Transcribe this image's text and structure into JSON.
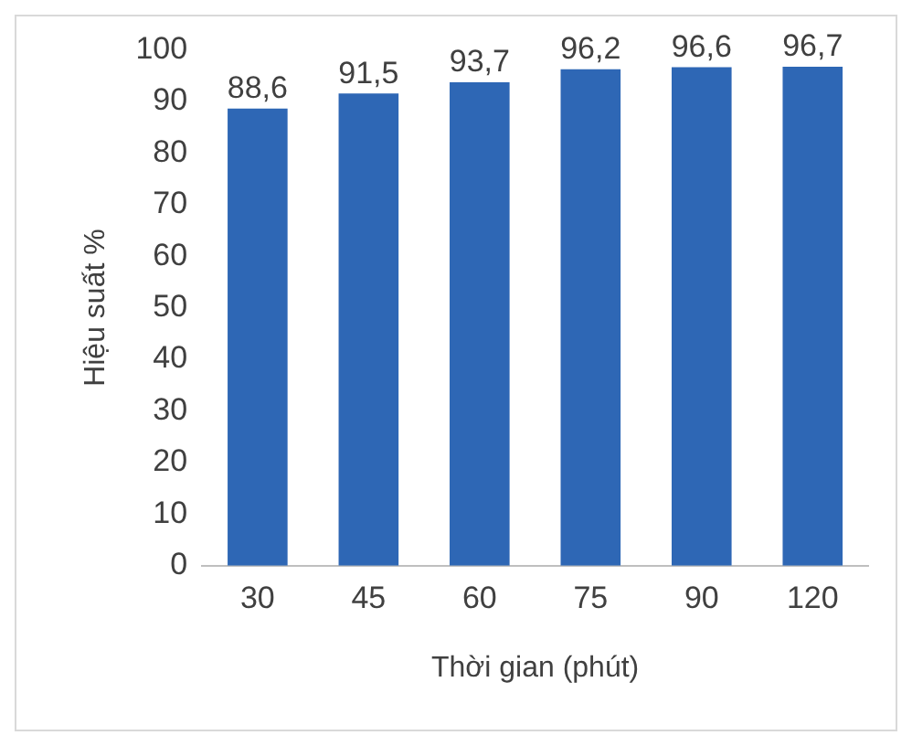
{
  "chart_data": {
    "type": "bar",
    "xlabel": "Thời gian (phút)",
    "ylabel": "Hiệu suất %",
    "categories": [
      "30",
      "45",
      "60",
      "75",
      "90",
      "120"
    ],
    "values": [
      88.6,
      91.5,
      93.7,
      96.2,
      96.6,
      96.7
    ],
    "value_labels": [
      "88,6",
      "91,5",
      "93,7",
      "96,2",
      "96,6",
      "96,7"
    ],
    "color": "#2e67b5",
    "ylim": [
      0,
      100
    ],
    "yticks": [
      0,
      10,
      20,
      30,
      40,
      50,
      60,
      70,
      80,
      90,
      100
    ],
    "grid": false,
    "legend": false
  }
}
